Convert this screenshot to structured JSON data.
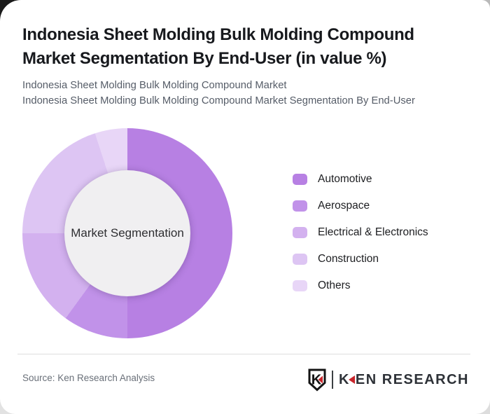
{
  "header": {
    "title": "Indonesia Sheet Molding Bulk Molding Compound Market Segmentation By End-User (in value %)",
    "subtitle_line1": "Indonesia Sheet Molding Bulk Molding Compound Market",
    "subtitle_line2": "Indonesia Sheet Molding Bulk Molding Compound Market Segmentation By End-User"
  },
  "chart_data": {
    "type": "pie",
    "donut": true,
    "title": "Indonesia Sheet Molding Bulk Molding Compound Market Segmentation By End-User (in value %)",
    "center_label": "Market Segmentation",
    "unit": "value %",
    "legend_position": "right",
    "segments": [
      {
        "label": "Automotive",
        "value": 50,
        "color": "#b780e3"
      },
      {
        "label": "Aerospace",
        "value": 10,
        "color": "#c192e9"
      },
      {
        "label": "Electrical & Electronics",
        "value": 15,
        "color": "#d3b1ef"
      },
      {
        "label": "Construction",
        "value": 20,
        "color": "#ddc5f3"
      },
      {
        "label": "Others",
        "value": 5,
        "color": "#e8d6f7"
      }
    ],
    "hole_color": "#f0eff1"
  },
  "footer": {
    "source": "Source: Ken Research Analysis",
    "logo": {
      "badge_letter": "K",
      "brand_first_letter": "K",
      "brand_rest": "EN RESEARCH",
      "accent_color": "#c9252b"
    }
  }
}
